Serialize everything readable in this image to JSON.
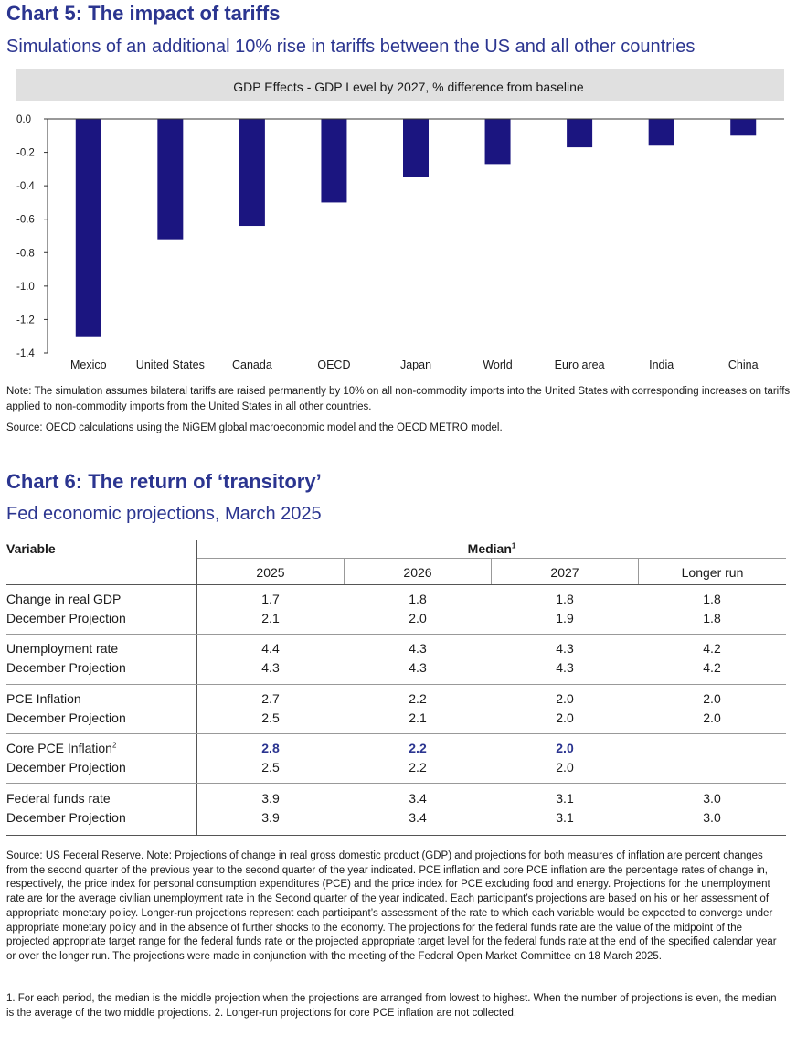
{
  "chart5": {
    "title": "Chart 5: The impact of tariffs",
    "subtitle": "Simulations of an additional 10% rise in tariffs between the US and all other countries",
    "panel_title": "GDP Effects - GDP Level by 2027, % difference from baseline",
    "note": "Note: The simulation assumes bilateral tariffs are raised permanently by 10% on all non-commodity imports into the United States with corresponding increases on tariffs applied to non-commodity imports from the United States in all other countries.",
    "source": "Source: OECD calculations using the NiGEM global macroeconomic model and the OECD METRO model."
  },
  "chart_data": {
    "type": "bar",
    "title": "GDP Effects - GDP Level by 2027, % difference from baseline",
    "categories": [
      "Mexico",
      "United States",
      "Canada",
      "OECD",
      "Japan",
      "World",
      "Euro area",
      "India",
      "China"
    ],
    "values": [
      -1.3,
      -0.72,
      -0.64,
      -0.5,
      -0.35,
      -0.27,
      -0.17,
      -0.16,
      -0.1
    ],
    "ylim": [
      -1.4,
      0.0
    ],
    "yticks": [
      "0.0",
      "-0.2",
      "-0.4",
      "-0.6",
      "-0.8",
      "-1.0",
      "-1.2",
      "-1.4"
    ],
    "xlabel": "",
    "ylabel": "",
    "bar_color": "#1b1580",
    "panel_color": "#e0e0e0",
    "grid": false
  },
  "chart6": {
    "title": "Chart 6: The return of ‘transitory’",
    "subtitle": "Fed economic projections, March 2025",
    "var_header": "Variable",
    "median_header": "Median",
    "median_sup": "1",
    "years": [
      "2025",
      "2026",
      "2027",
      "Longer run"
    ],
    "rows": [
      {
        "label": "Change in real GDP",
        "sup": "",
        "values": [
          "1.7",
          "1.8",
          "1.8",
          "1.8"
        ],
        "dec_label": "December Projection",
        "dec_values": [
          "2.1",
          "2.0",
          "1.9",
          "1.8"
        ],
        "bold": false
      },
      {
        "label": "Unemployment rate",
        "sup": "",
        "values": [
          "4.4",
          "4.3",
          "4.3",
          "4.2"
        ],
        "dec_label": "December Projection",
        "dec_values": [
          "4.3",
          "4.3",
          "4.3",
          "4.2"
        ],
        "bold": false
      },
      {
        "label": "PCE Inflation",
        "sup": "",
        "values": [
          "2.7",
          "2.2",
          "2.0",
          "2.0"
        ],
        "dec_label": "December Projection",
        "dec_values": [
          "2.5",
          "2.1",
          "2.0",
          "2.0"
        ],
        "bold": false
      },
      {
        "label": "Core PCE Inflation",
        "sup": "2",
        "values": [
          "2.8",
          "2.2",
          "2.0",
          ""
        ],
        "dec_label": "December Projection",
        "dec_values": [
          "2.5",
          "2.2",
          "2.0",
          ""
        ],
        "bold": true
      },
      {
        "label": "Federal funds rate",
        "sup": "",
        "values": [
          "3.9",
          "3.4",
          "3.1",
          "3.0"
        ],
        "dec_label": "December Projection",
        "dec_values": [
          "3.9",
          "3.4",
          "3.1",
          "3.0"
        ],
        "bold": false
      }
    ],
    "source_note": "Source: US Federal Reserve. Note: Projections of change in real gross domestic product (GDP) and projections for both measures of inflation are percent changes from the second quarter of the previous year to the second quarter of the year indicated. PCE inflation and core PCE inflation are the percentage rates of change in, respectively, the price index for personal consumption expenditures (PCE) and the price index for PCE excluding food and energy. Projections for the unemployment rate are for the average civilian unemployment rate in the Second quarter of the year indicated. Each participant’s projections are based on his or her assessment of appropriate monetary policy. Longer-run projections represent each participant’s assessment of the rate to which each variable would be expected to converge under appropriate monetary policy and in the absence of further shocks to the economy. The projections for the federal funds rate are the value of the midpoint of the projected appropriate target range for the federal funds rate or the projected appropriate target level for the federal funds rate at the end of the specified calendar year or over the longer run. The projections were made in conjunction with the meeting of the Federal Open Market Committee on 18 March 2025.",
    "footnotes": "1. For each period, the median is the middle projection when the projections are arranged from lowest to highest. When the number of projections is even, the median is the average of the two middle projections. 2. Longer-run projections for core PCE inflation are not collected."
  }
}
